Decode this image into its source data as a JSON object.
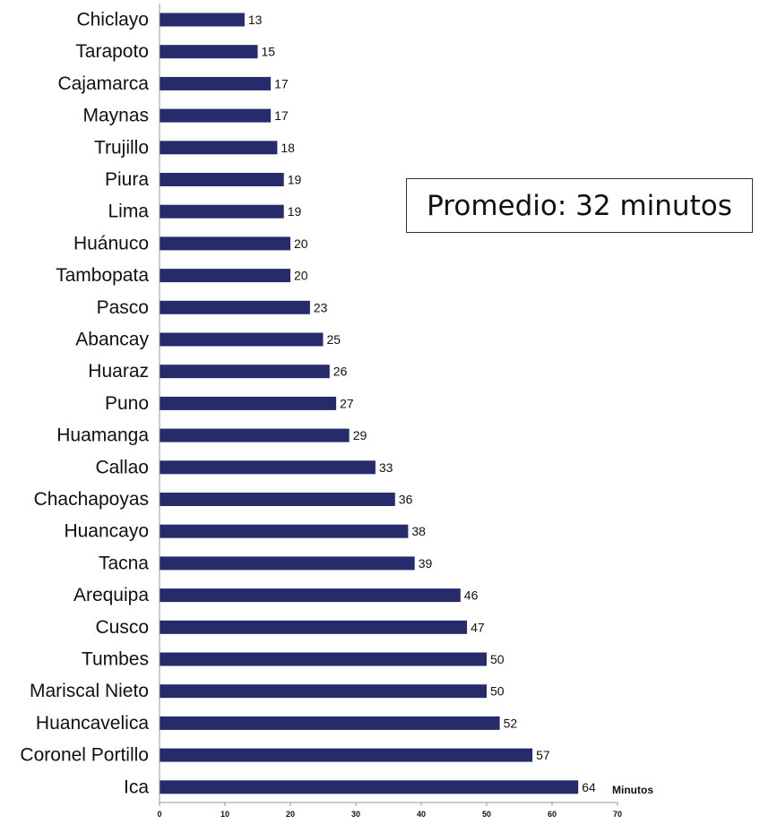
{
  "promedio": "Promedio: 32 minutos",
  "colors": {
    "bar": "#272a6b",
    "axis": "#999999",
    "text": "#111111"
  },
  "chart_data": {
    "type": "bar",
    "orientation": "horizontal",
    "title": "",
    "xlabel": "Minutos",
    "ylabel": "",
    "xlim": [
      0,
      70
    ],
    "xticks": [
      0,
      10,
      20,
      30,
      40,
      50,
      60,
      70
    ],
    "grid": false,
    "legend": "none",
    "categories": [
      "Chiclayo",
      "Tarapoto",
      "Cajamarca",
      "Maynas",
      "Trujillo",
      "Piura",
      "Lima",
      "Huánuco",
      "Tambopata",
      "Pasco",
      "Abancay",
      "Huaraz",
      "Puno",
      "Huamanga",
      "Callao",
      "Chachapoyas",
      "Huancayo",
      "Tacna",
      "Arequipa",
      "Cusco",
      "Tumbes",
      "Mariscal Nieto",
      "Huancavelica",
      "Coronel Portillo",
      "Ica"
    ],
    "values": [
      13,
      15,
      17,
      17,
      18,
      19,
      19,
      20,
      20,
      23,
      25,
      26,
      27,
      29,
      33,
      36,
      38,
      39,
      46,
      47,
      50,
      50,
      52,
      57,
      64
    ],
    "value_labels": [
      "13",
      "15",
      "17",
      "17",
      "18",
      "19",
      "19",
      "20",
      "20",
      "23",
      "25",
      "26",
      "27",
      "29",
      "33",
      "36",
      "38",
      "39",
      "46",
      "47",
      "50",
      "50",
      "52",
      "57",
      "64"
    ]
  }
}
